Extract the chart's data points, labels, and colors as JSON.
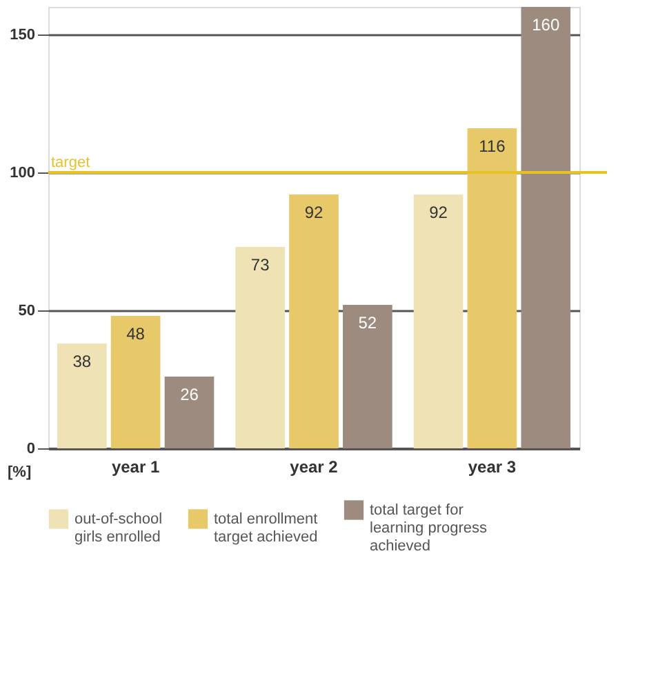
{
  "chart_data": {
    "type": "bar",
    "ylabel": "[%]",
    "categories": [
      "year 1",
      "year 2",
      "year 3"
    ],
    "series": [
      {
        "name": "out-of-school girls enrolled",
        "color": "#efe3b5",
        "values": [
          38,
          73,
          92
        ]
      },
      {
        "name": "total enrollment target achieved",
        "color": "#e7c96a",
        "values": [
          48,
          92,
          116
        ]
      },
      {
        "name": "total target for learning progress achieved",
        "color": "#9c8b7e",
        "values": [
          26,
          52,
          160
        ]
      }
    ],
    "ylim": [
      0,
      160
    ],
    "yticks": [
      0,
      50,
      100,
      150
    ],
    "grid": "y",
    "legend": "bottom",
    "data_labels": true,
    "ref_lines": [
      {
        "axis": "y",
        "value": 100,
        "label": "target",
        "color": "#e6c229"
      }
    ]
  }
}
